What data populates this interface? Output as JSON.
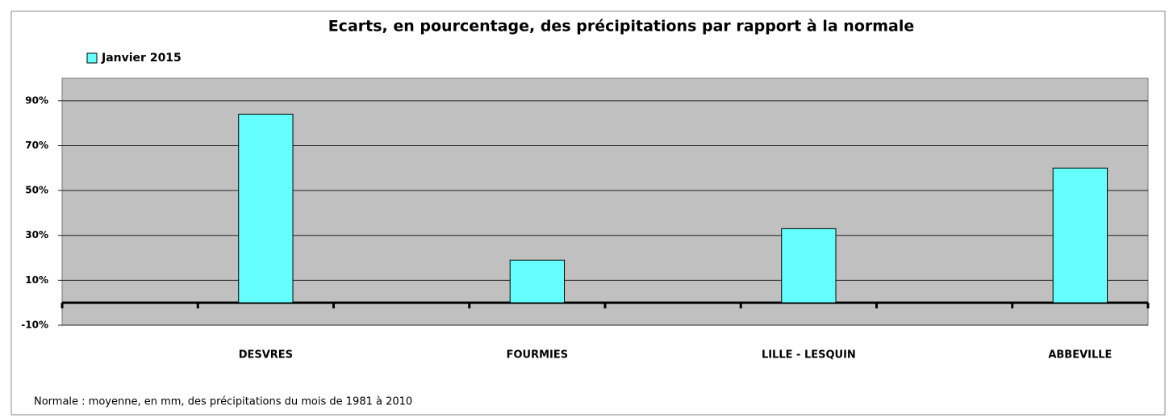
{
  "chart_data": {
    "type": "bar",
    "title": "Ecarts, en pourcentage, des précipitations par rapport à la normale",
    "categories": [
      null,
      "DESVRES",
      null,
      "FOURMIES",
      null,
      "LILLE - LESQUIN",
      null,
      "ABBEVILLE"
    ],
    "series": [
      {
        "name": "Janvier 2015",
        "color": "#66ffff",
        "values": [
          null,
          84,
          null,
          19,
          null,
          33,
          null,
          60
        ]
      }
    ],
    "ylim": [
      -10,
      100
    ],
    "yticks": [
      {
        "value": -10,
        "label": "-10%"
      },
      {
        "value": 10,
        "label": "10%"
      },
      {
        "value": 30,
        "label": "30%"
      },
      {
        "value": 50,
        "label": "50%"
      },
      {
        "value": 70,
        "label": "70%"
      },
      {
        "value": 90,
        "label": "90%"
      }
    ],
    "grid": true,
    "legend": "top-left",
    "footnote": "Normale :  moyenne, en mm, des précipitations du mois de 1981 à 2010"
  }
}
